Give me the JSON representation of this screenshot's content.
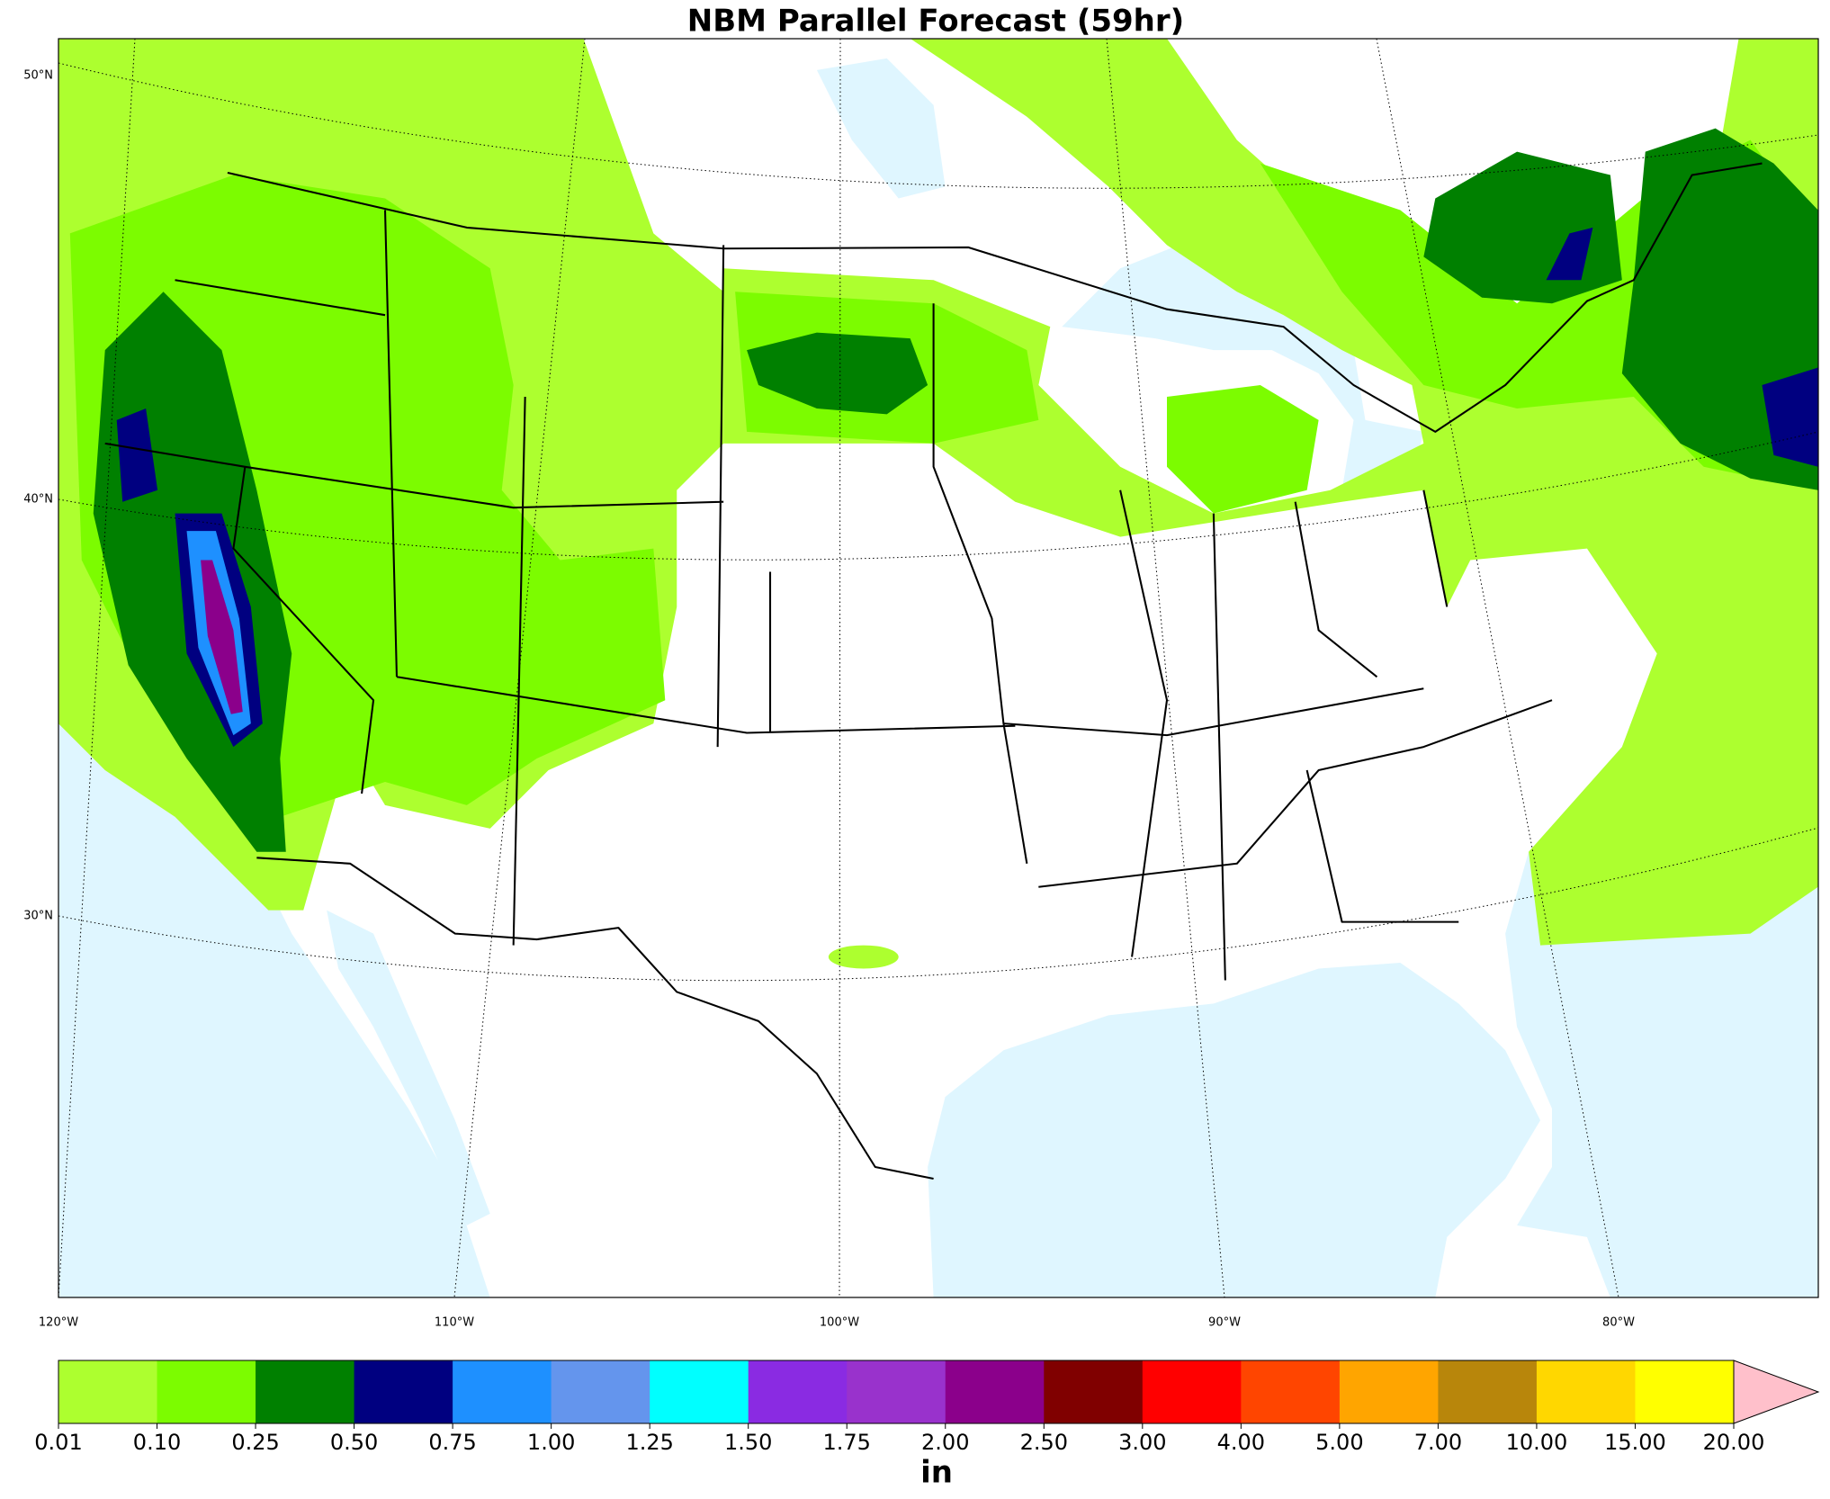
{
  "title": "NBM Parallel Forecast (59hr)",
  "latitude_labels": [
    "50°N",
    "40°N",
    "30°N"
  ],
  "longitude_labels": [
    "120°W",
    "110°W",
    "100°W",
    "90°W",
    "80°W"
  ],
  "colorbar": {
    "unit": "in",
    "ticks": [
      {
        "value": 0.01,
        "label": "0.01"
      },
      {
        "value": 0.1,
        "label": "0.10"
      },
      {
        "value": 0.25,
        "label": "0.25"
      },
      {
        "value": 0.5,
        "label": "0.50"
      },
      {
        "value": 0.75,
        "label": "0.75"
      },
      {
        "value": 1,
        "label": "1.00"
      },
      {
        "value": 1.25,
        "label": "1.25"
      },
      {
        "value": 1.5,
        "label": "1.50"
      },
      {
        "value": 1.75,
        "label": "1.75"
      },
      {
        "value": 2,
        "label": "2.00"
      },
      {
        "value": 2.5,
        "label": "2.50"
      },
      {
        "value": 3,
        "label": "3.00"
      },
      {
        "value": 4,
        "label": "4.00"
      },
      {
        "value": 5,
        "label": "5.00"
      },
      {
        "value": 7,
        "label": "7.00"
      },
      {
        "value": 10,
        "label": "10.00"
      },
      {
        "value": 15,
        "label": "15.00"
      },
      {
        "value": 20,
        "label": "20.00"
      }
    ],
    "colors": [
      "#adff2f",
      "#7cfc00",
      "#008000",
      "#000080",
      "#1e90ff",
      "#6495ed",
      "#00ffff",
      "#8a2be2",
      "#9932cc",
      "#8b008b",
      "#800000",
      "#ff0000",
      "#ff4500",
      "#ffa500",
      "#b8860b",
      "#ffd700",
      "#ffff00"
    ],
    "extend_color": "#ffc0cb"
  }
}
